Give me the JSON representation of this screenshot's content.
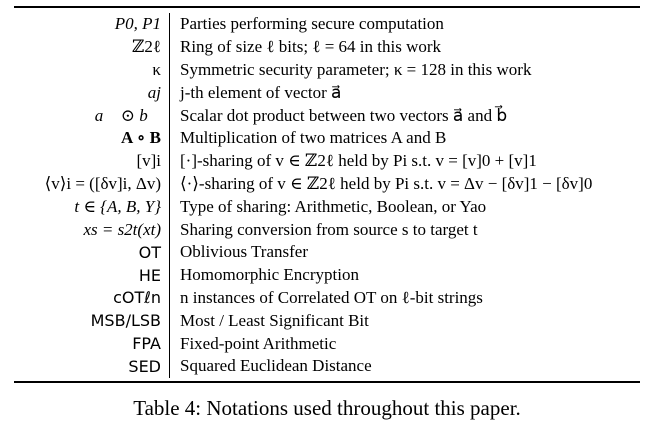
{
  "table": {
    "rows": [
      {
        "symbol": "P0, P1",
        "description": "Parties performing secure computation"
      },
      {
        "symbol": "ℤ2ℓ",
        "description": "Ring of size ℓ bits; ℓ = 64 in this work"
      },
      {
        "symbol": "κ",
        "description": "Symmetric security parameter; κ = 128 in this work"
      },
      {
        "symbol": "aj",
        "description": "j-th element of vector a⃗"
      },
      {
        "symbol": "a⃗ ⊙ b⃗",
        "description": "Scalar dot product between two vectors a⃗ and b⃗"
      },
      {
        "symbol": "A ∘ B",
        "description": "Multiplication of two matrices A and B"
      },
      {
        "symbol": "[v]i",
        "description": "[·]-sharing of v ∈ ℤ2ℓ held by Pi s.t. v = [v]0 + [v]1"
      },
      {
        "symbol": "⟨v⟩i = ([δv]i, Δv)",
        "description": "⟨·⟩-sharing of v ∈ ℤ2ℓ held by Pi s.t. v = Δv − [δv]1 − [δv]0"
      },
      {
        "symbol": "t ∈ {A, B, Y}",
        "description": "Type of sharing: Arithmetic, Boolean, or Yao"
      },
      {
        "symbol": "xs = s2t(xt)",
        "description": "Sharing conversion from source s to target t"
      },
      {
        "symbol": "OT",
        "description": "Oblivious Transfer"
      },
      {
        "symbol": "HE",
        "description": "Homomorphic Encryption"
      },
      {
        "symbol": "cOTℓn",
        "description": "n instances of Correlated OT on ℓ-bit strings"
      },
      {
        "symbol": "MSB/LSB",
        "description": "Most / Least Significant Bit"
      },
      {
        "symbol": "FPA",
        "description": "Fixed-point Arithmetic"
      },
      {
        "symbol": "SED",
        "description": "Squared Euclidean Distance"
      }
    ]
  },
  "caption": "Table 4: Notations used throughout this paper."
}
